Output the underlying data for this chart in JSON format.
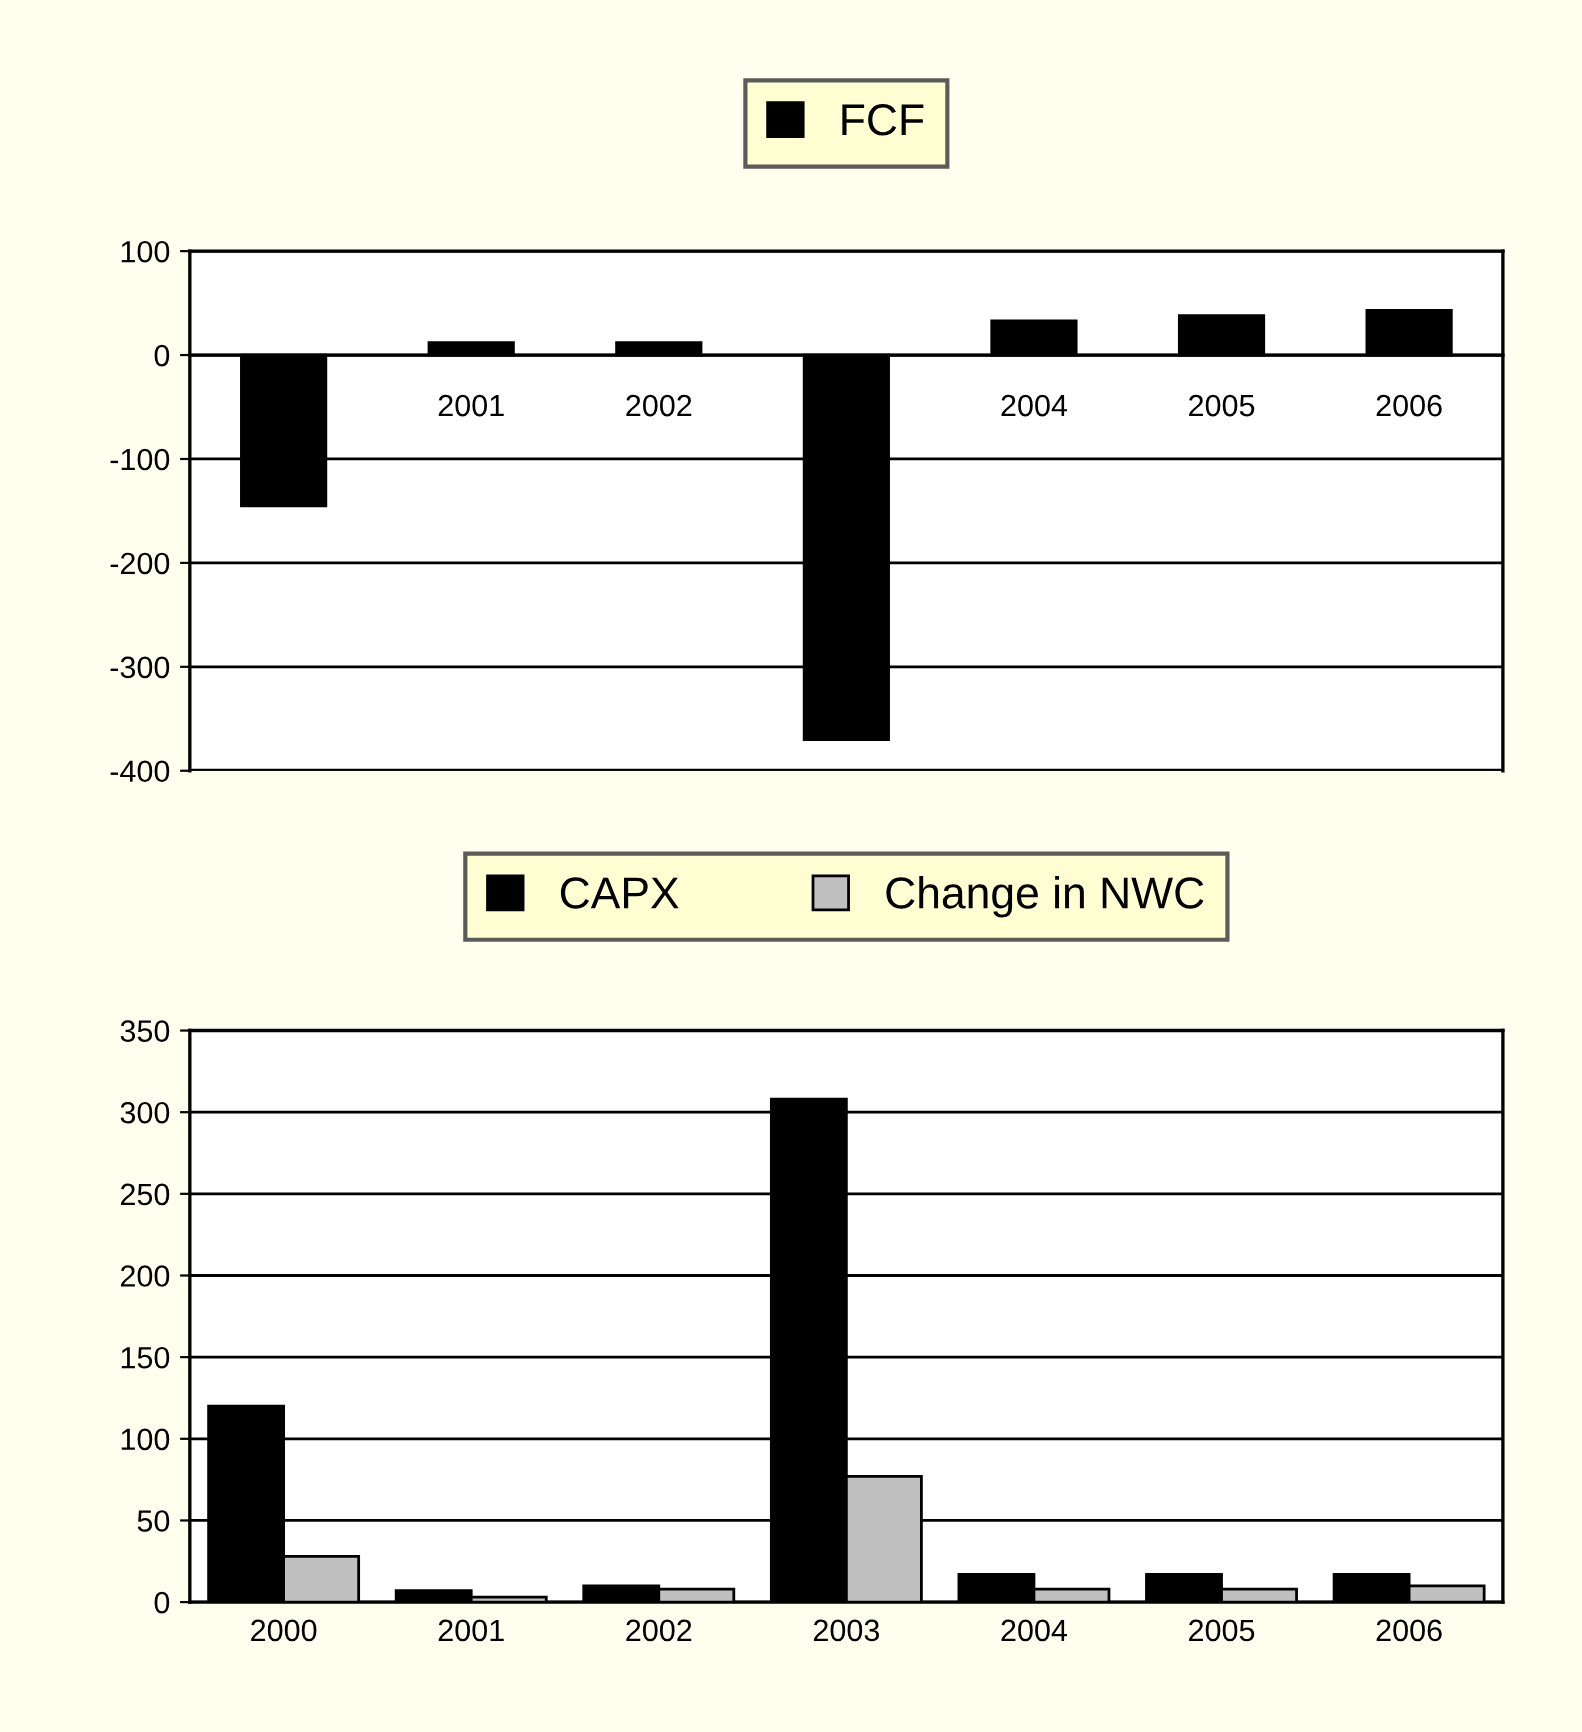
{
  "chart_data": [
    {
      "type": "bar",
      "categories": [
        null,
        "2001",
        "2002",
        null,
        "2004",
        "2005",
        "2006"
      ],
      "series": [
        {
          "name": "FCF",
          "color": "#000000",
          "values": [
            -145,
            12,
            12,
            -370,
            33,
            38,
            43
          ]
        }
      ],
      "ylim": [
        -400,
        100
      ],
      "yticks": [
        -400,
        -300,
        -200,
        -100,
        0,
        100
      ],
      "grid": "y",
      "legend": "top"
    },
    {
      "type": "bar",
      "categories": [
        "2000",
        "2001",
        "2002",
        "2003",
        "2004",
        "2005",
        "2006"
      ],
      "series": [
        {
          "name": "CAPX",
          "color": "#000000",
          "values": [
            120,
            7,
            10,
            308,
            17,
            17,
            17
          ]
        },
        {
          "name": "Change in NWC",
          "color": "#c0c0c0",
          "values": [
            28,
            3,
            8,
            77,
            8,
            8,
            10
          ]
        }
      ],
      "ylim": [
        0,
        350
      ],
      "yticks": [
        0,
        50,
        100,
        150,
        200,
        250,
        300,
        350
      ],
      "grid": "y",
      "legend": "top"
    }
  ]
}
